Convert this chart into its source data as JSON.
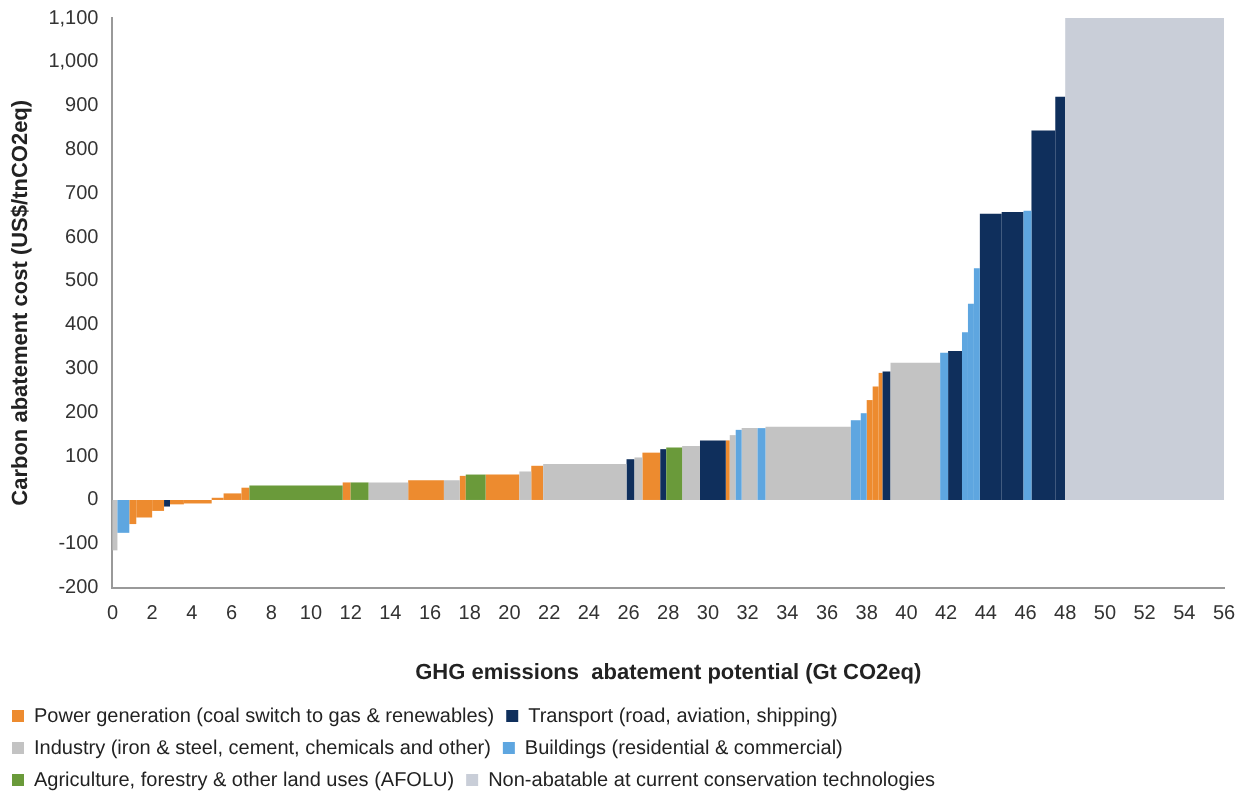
{
  "chart_data": {
    "type": "histogram",
    "xlabel": "GHG emissions  abatement potential (Gt CO2eq)",
    "ylabel": "Carbon abatement cost (US$/tnCO2eq)",
    "bins": [
      0,
      0.25,
      0.85,
      1.2,
      2.0,
      2.6,
      2.9,
      3.6,
      5.0,
      5.6,
      6.5,
      6.9,
      11.6,
      12.0,
      12.9,
      14.9,
      16.7,
      17.5,
      17.8,
      18.8,
      20.5,
      21.1,
      21.7,
      25.9,
      26.3,
      26.7,
      27.6,
      27.9,
      28.7,
      29.6,
      30.9,
      31.1,
      31.4,
      31.7,
      32.5,
      32.9,
      37.2,
      37.7,
      38.0,
      38.3,
      38.6,
      38.8,
      39.2,
      41.7,
      42.1,
      42.8,
      43.1,
      43.4,
      43.7,
      44.8,
      45.9,
      46.3,
      47.5,
      48.0,
      56
    ],
    "series": [
      {
        "name": "Power generation (coal switch to gas & renewables)",
        "color": "#ed8b2f",
        "values": [
          null,
          null,
          -55,
          -40,
          -25,
          null,
          -10,
          -8,
          5,
          15,
          28,
          null,
          40,
          null,
          null,
          45,
          null,
          55,
          null,
          58,
          null,
          78,
          null,
          null,
          null,
          108,
          null,
          null,
          null,
          null,
          136,
          null,
          null,
          null,
          null,
          null,
          null,
          null,
          228,
          259,
          290,
          null,
          null,
          null,
          null,
          null,
          null,
          null,
          null,
          null,
          null,
          null,
          null,
          null
        ]
      },
      {
        "name": "Transport (road, aviation, shipping)",
        "color": "#0f2f5c",
        "values": [
          null,
          null,
          null,
          null,
          null,
          -15,
          null,
          null,
          null,
          null,
          null,
          null,
          null,
          null,
          null,
          null,
          null,
          null,
          null,
          null,
          null,
          null,
          null,
          93,
          null,
          null,
          116,
          null,
          null,
          136,
          null,
          null,
          null,
          null,
          null,
          null,
          null,
          null,
          null,
          null,
          null,
          293,
          null,
          null,
          340,
          null,
          null,
          null,
          653,
          657,
          null,
          843,
          920,
          null
        ]
      },
      {
        "name": "Industry (iron & steel, cement, chemicals and other)",
        "color": "#c3c3c3",
        "values": [
          -115,
          null,
          null,
          null,
          null,
          null,
          null,
          null,
          null,
          null,
          null,
          null,
          null,
          null,
          40,
          null,
          45,
          null,
          null,
          null,
          65,
          null,
          82,
          null,
          97,
          null,
          null,
          null,
          123,
          null,
          null,
          148,
          null,
          164,
          null,
          167,
          null,
          null,
          null,
          null,
          null,
          null,
          313,
          null,
          null,
          null,
          null,
          null,
          null,
          null,
          null,
          null,
          null,
          null
        ]
      },
      {
        "name": "Buildings (residential & commercial)",
        "color": "#5ea6e0",
        "values": [
          null,
          -75,
          null,
          null,
          null,
          null,
          null,
          null,
          null,
          null,
          null,
          null,
          null,
          null,
          null,
          null,
          null,
          null,
          null,
          null,
          null,
          null,
          null,
          null,
          null,
          null,
          null,
          null,
          null,
          null,
          null,
          null,
          160,
          null,
          164,
          null,
          182,
          198,
          null,
          null,
          null,
          null,
          null,
          336,
          null,
          383,
          448,
          529,
          null,
          null,
          660,
          null,
          null,
          null
        ]
      },
      {
        "name": "Agriculture, forestry & other land uses (AFOLU)",
        "color": "#6a9a3a",
        "values": [
          null,
          null,
          null,
          null,
          null,
          null,
          null,
          null,
          null,
          null,
          null,
          33,
          null,
          40,
          null,
          null,
          null,
          null,
          58,
          null,
          null,
          null,
          null,
          null,
          null,
          null,
          null,
          120,
          null,
          null,
          null,
          null,
          null,
          null,
          null,
          null,
          null,
          null,
          null,
          null,
          null,
          null,
          null,
          null,
          null,
          null,
          null,
          null,
          null,
          null,
          null,
          null,
          null,
          null
        ]
      },
      {
        "name": "Non-abatable at current conservation technologies",
        "color": "#c9ced8",
        "values": [
          null,
          null,
          null,
          null,
          null,
          null,
          null,
          null,
          null,
          null,
          null,
          null,
          null,
          null,
          null,
          null,
          null,
          null,
          null,
          null,
          null,
          null,
          null,
          null,
          null,
          null,
          null,
          null,
          null,
          null,
          null,
          null,
          null,
          null,
          null,
          null,
          null,
          null,
          null,
          null,
          null,
          null,
          null,
          null,
          null,
          null,
          null,
          null,
          null,
          null,
          null,
          null,
          null,
          1100
        ]
      }
    ],
    "xlim": [
      0,
      56
    ],
    "xticks": [
      0,
      2,
      4,
      6,
      8,
      10,
      12,
      14,
      16,
      18,
      20,
      22,
      24,
      26,
      28,
      30,
      32,
      34,
      36,
      38,
      40,
      42,
      44,
      46,
      48,
      50,
      52,
      54,
      56
    ],
    "ylim": [
      -200,
      1100
    ],
    "yticks": [
      -200,
      -100,
      0,
      100,
      200,
      300,
      400,
      500,
      600,
      700,
      800,
      900,
      {
        "value": 1000,
        "label": "1,000"
      },
      {
        "value": 1100,
        "label": "1,100"
      }
    ],
    "grid": false,
    "legend": "bottom"
  }
}
